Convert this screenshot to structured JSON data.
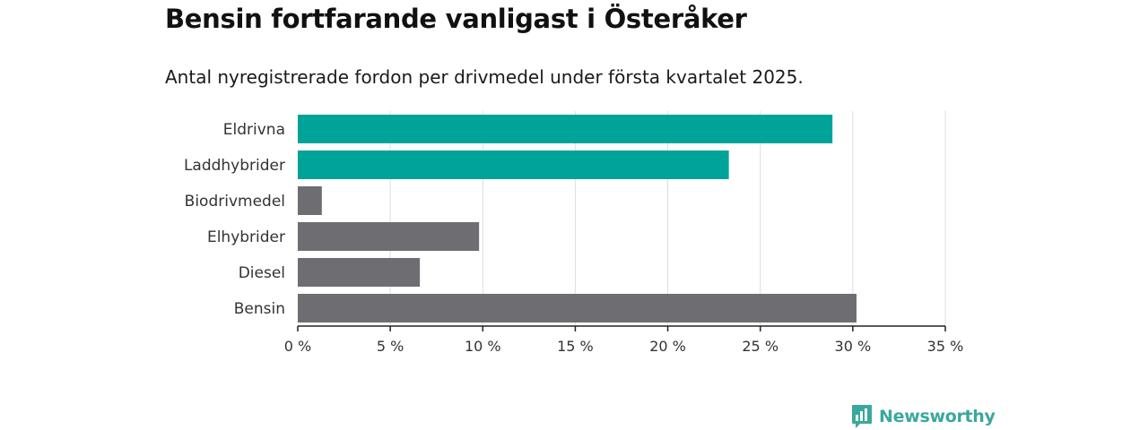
{
  "header": {
    "title": "Bensin fortfarande vanligast i Österåker",
    "subtitle": "Antal nyregistrerade fordon per drivmedel under första kvartalet 2025."
  },
  "brand": {
    "name": "Newsworthy",
    "icon": "newsworthy-logo-icon",
    "color": "#3aa89c"
  },
  "chart_data": {
    "type": "bar",
    "orientation": "horizontal",
    "categories": [
      "Eldrivna",
      "Laddhybrider",
      "Biodrivmedel",
      "Elhybrider",
      "Diesel",
      "Bensin"
    ],
    "values": [
      28.9,
      23.3,
      1.3,
      9.8,
      6.6,
      30.2
    ],
    "colors": [
      "#00a398",
      "#00a398",
      "#6e6d72",
      "#6e6d72",
      "#6e6d72",
      "#6e6d72"
    ],
    "xlim": [
      0,
      35
    ],
    "xticks": [
      0,
      5,
      10,
      15,
      20,
      25,
      30,
      35
    ],
    "xtick_labels": [
      "0 %",
      "5 %",
      "10 %",
      "15 %",
      "20 %",
      "25 %",
      "30 %",
      "35 %"
    ],
    "grid": true,
    "grid_color": "#dddddd",
    "axis_color": "#222222"
  }
}
